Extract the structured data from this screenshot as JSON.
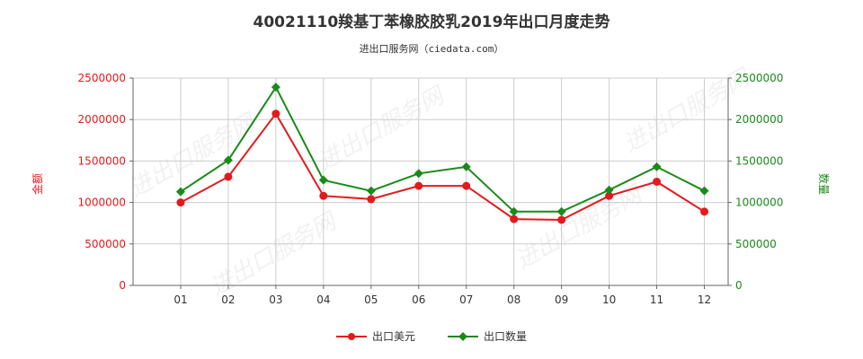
{
  "title": "40021110羧基丁苯橡胶胶乳2019年出口月度走势",
  "subtitle": "进出口服务网（ciedata.com）",
  "watermark": "进出口服务网",
  "colors": {
    "usd": "#e31a1c",
    "qty": "#1a8a1a",
    "grid": "#cccccc",
    "axis": "#666666"
  },
  "chart_data": {
    "type": "line",
    "categories": [
      "01",
      "02",
      "03",
      "04",
      "05",
      "06",
      "07",
      "08",
      "09",
      "10",
      "11",
      "12"
    ],
    "left_axis": {
      "label": "金额",
      "min": 0,
      "max": 2500000,
      "ticks": [
        "0",
        "500000",
        "1000000",
        "1500000",
        "2000000",
        "2500000"
      ]
    },
    "right_axis": {
      "label": "数量",
      "min": 0,
      "max": 2500000,
      "ticks": [
        "0",
        "500000",
        "1000000",
        "1500000",
        "2000000",
        "2500000"
      ]
    },
    "grid": true,
    "legend_position": "bottom",
    "series": [
      {
        "name": "出口美元",
        "axis": "left",
        "color": "#e31a1c",
        "marker": "circle",
        "values": [
          1000000,
          1310000,
          2070000,
          1080000,
          1040000,
          1200000,
          1200000,
          800000,
          790000,
          1080000,
          1250000,
          890000
        ]
      },
      {
        "name": "出口数量",
        "axis": "right",
        "color": "#1a8a1a",
        "marker": "diamond",
        "values": [
          1130000,
          1510000,
          2390000,
          1270000,
          1140000,
          1350000,
          1430000,
          890000,
          890000,
          1150000,
          1430000,
          1140000
        ]
      }
    ]
  }
}
